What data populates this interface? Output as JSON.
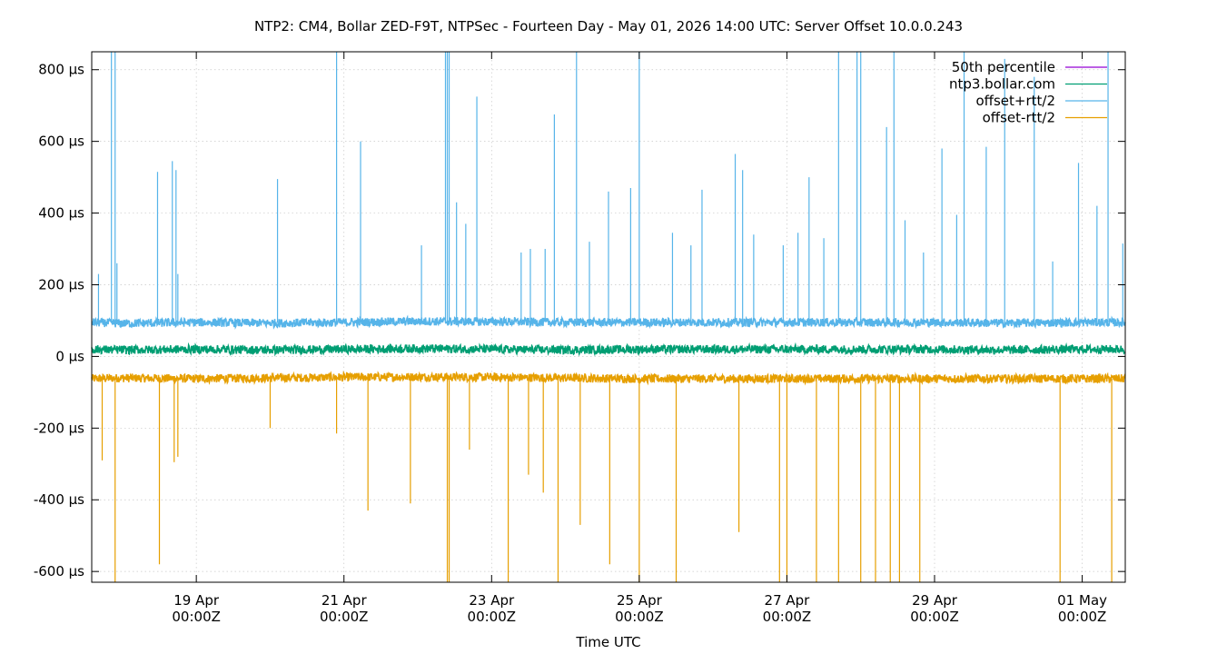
{
  "chart_data": {
    "type": "line",
    "title": "NTP2: CM4, Bollar ZED-F9T, NTPSec - Fourteen Day - May 01, 2026 14:00 UTC: Server Offset 10.0.0.243",
    "xlabel": "Time UTC",
    "ylabel": "",
    "y_unit": "µs",
    "xlim": [
      "2026-04-17T14:00Z",
      "2026-05-01T14:00Z"
    ],
    "ylim": [
      -630,
      850
    ],
    "grid": true,
    "legend_position": "top-right",
    "x_ticks": [
      {
        "at": "2026-04-19T00:00Z",
        "line1": "19 Apr",
        "line2": "00:00Z"
      },
      {
        "at": "2026-04-21T00:00Z",
        "line1": "21 Apr",
        "line2": "00:00Z"
      },
      {
        "at": "2026-04-23T00:00Z",
        "line1": "23 Apr",
        "line2": "00:00Z"
      },
      {
        "at": "2026-04-25T00:00Z",
        "line1": "25 Apr",
        "line2": "00:00Z"
      },
      {
        "at": "2026-04-27T00:00Z",
        "line1": "27 Apr",
        "line2": "00:00Z"
      },
      {
        "at": "2026-04-29T00:00Z",
        "line1": "29 Apr",
        "line2": "00:00Z"
      },
      {
        "at": "2026-05-01T00:00Z",
        "line1": "01 May",
        "line2": "00:00Z"
      }
    ],
    "y_ticks": [
      {
        "value": 800,
        "label": "800 µs"
      },
      {
        "value": 600,
        "label": "600 µs"
      },
      {
        "value": 400,
        "label": "400 µs"
      },
      {
        "value": 200,
        "label": "200 µs"
      },
      {
        "value": 0,
        "label": "0 µs"
      },
      {
        "value": -200,
        "label": "-200 µs"
      },
      {
        "value": -400,
        "label": "-400 µs"
      },
      {
        "value": -600,
        "label": "-600 µs"
      }
    ],
    "series": [
      {
        "name": "50th percentile",
        "color": "#9400d3",
        "x": [
          "2026-04-17T14:00Z",
          "2026-05-01T14:00Z"
        ],
        "values": [
          20,
          20
        ],
        "visible_in_plot": false
      },
      {
        "name": "ntp3.bollar.com",
        "color": "#009e73",
        "x": [
          "2026-04-17T14:00Z",
          "2026-04-18T00:00Z",
          "2026-04-19T00:00Z",
          "2026-04-20T00:00Z",
          "2026-04-21T00:00Z",
          "2026-04-22T00:00Z",
          "2026-04-23T00:00Z",
          "2026-04-24T00:00Z",
          "2026-04-25T00:00Z",
          "2026-04-26T00:00Z",
          "2026-04-27T00:00Z",
          "2026-04-28T00:00Z",
          "2026-04-29T00:00Z",
          "2026-04-30T00:00Z",
          "2026-05-01T00:00Z",
          "2026-05-01T14:00Z"
        ],
        "values": [
          20,
          18,
          20,
          18,
          20,
          22,
          20,
          18,
          20,
          20,
          20,
          20,
          20,
          18,
          20,
          20
        ],
        "noise": 12
      },
      {
        "name": "offset+rtt/2",
        "color": "#56b4e9",
        "x": [
          "2026-04-17T14:00Z",
          "2026-04-18T00:00Z",
          "2026-04-19T00:00Z",
          "2026-04-20T00:00Z",
          "2026-04-21T00:00Z",
          "2026-04-22T00:00Z",
          "2026-04-23T00:00Z",
          "2026-04-24T00:00Z",
          "2026-04-25T00:00Z",
          "2026-04-26T00:00Z",
          "2026-04-27T00:00Z",
          "2026-04-28T00:00Z",
          "2026-04-29T00:00Z",
          "2026-04-30T00:00Z",
          "2026-05-01T00:00Z",
          "2026-05-01T14:00Z"
        ],
        "values": [
          95,
          92,
          95,
          93,
          95,
          98,
          97,
          95,
          95,
          95,
          95,
          95,
          95,
          93,
          95,
          95
        ],
        "noise": 12,
        "spikes": [
          {
            "x": "2026-04-17T16:12Z",
            "value": 230
          },
          {
            "x": "2026-04-17T20:24Z",
            "value": 850
          },
          {
            "x": "2026-04-17T21:36Z",
            "value": 850
          },
          {
            "x": "2026-04-17T22:12Z",
            "value": 260
          },
          {
            "x": "2026-04-18T11:24Z",
            "value": 515
          },
          {
            "x": "2026-04-18T16:12Z",
            "value": 545
          },
          {
            "x": "2026-04-18T17:24Z",
            "value": 520
          },
          {
            "x": "2026-04-18T18:00Z",
            "value": 230
          },
          {
            "x": "2026-04-20T02:24Z",
            "value": 495
          },
          {
            "x": "2026-04-20T21:36Z",
            "value": 850
          },
          {
            "x": "2026-04-21T05:24Z",
            "value": 600
          },
          {
            "x": "2026-04-22T01:12Z",
            "value": 310
          },
          {
            "x": "2026-04-22T09:00Z",
            "value": 850
          },
          {
            "x": "2026-04-22T09:36Z",
            "value": 850
          },
          {
            "x": "2026-04-22T10:12Z",
            "value": 850
          },
          {
            "x": "2026-04-22T12:36Z",
            "value": 430
          },
          {
            "x": "2026-04-22T15:36Z",
            "value": 370
          },
          {
            "x": "2026-04-22T19:12Z",
            "value": 725
          },
          {
            "x": "2026-04-23T09:36Z",
            "value": 290
          },
          {
            "x": "2026-04-23T12:36Z",
            "value": 300
          },
          {
            "x": "2026-04-23T17:24Z",
            "value": 300
          },
          {
            "x": "2026-04-23T20:24Z",
            "value": 675
          },
          {
            "x": "2026-04-24T03:36Z",
            "value": 850
          },
          {
            "x": "2026-04-24T07:48Z",
            "value": 320
          },
          {
            "x": "2026-04-24T14:00Z",
            "value": 460
          },
          {
            "x": "2026-04-24T21:12Z",
            "value": 470
          },
          {
            "x": "2026-04-25T00:00Z",
            "value": 850
          },
          {
            "x": "2026-04-25T10:48Z",
            "value": 345
          },
          {
            "x": "2026-04-25T16:48Z",
            "value": 310
          },
          {
            "x": "2026-04-25T20:24Z",
            "value": 465
          },
          {
            "x": "2026-04-26T07:12Z",
            "value": 565
          },
          {
            "x": "2026-04-26T09:36Z",
            "value": 520
          },
          {
            "x": "2026-04-26T13:12Z",
            "value": 340
          },
          {
            "x": "2026-04-26T22:48Z",
            "value": 310
          },
          {
            "x": "2026-04-27T03:36Z",
            "value": 345
          },
          {
            "x": "2026-04-27T07:12Z",
            "value": 500
          },
          {
            "x": "2026-04-27T12:00Z",
            "value": 330
          },
          {
            "x": "2026-04-27T16:48Z",
            "value": 850
          },
          {
            "x": "2026-04-27T22:48Z",
            "value": 850
          },
          {
            "x": "2026-04-28T00:00Z",
            "value": 850
          },
          {
            "x": "2026-04-28T08:24Z",
            "value": 640
          },
          {
            "x": "2026-04-28T10:48Z",
            "value": 850
          },
          {
            "x": "2026-04-28T14:24Z",
            "value": 380
          },
          {
            "x": "2026-04-28T20:24Z",
            "value": 290
          },
          {
            "x": "2026-04-29T02:24Z",
            "value": 580
          },
          {
            "x": "2026-04-29T07:12Z",
            "value": 395
          },
          {
            "x": "2026-04-29T09:36Z",
            "value": 850
          },
          {
            "x": "2026-04-29T16:48Z",
            "value": 585
          },
          {
            "x": "2026-04-29T22:48Z",
            "value": 830
          },
          {
            "x": "2026-04-30T08:24Z",
            "value": 780
          },
          {
            "x": "2026-04-30T14:24Z",
            "value": 265
          },
          {
            "x": "2026-04-30T22:48Z",
            "value": 540
          },
          {
            "x": "2026-05-01T04:48Z",
            "value": 420
          },
          {
            "x": "2026-05-01T08:24Z",
            "value": 850
          },
          {
            "x": "2026-05-01T13:12Z",
            "value": 315
          }
        ]
      },
      {
        "name": "offset-rtt/2",
        "color": "#e69f00",
        "x": [
          "2026-04-17T14:00Z",
          "2026-04-18T00:00Z",
          "2026-04-19T00:00Z",
          "2026-04-20T00:00Z",
          "2026-04-21T00:00Z",
          "2026-04-22T00:00Z",
          "2026-04-23T00:00Z",
          "2026-04-24T00:00Z",
          "2026-04-25T00:00Z",
          "2026-04-26T00:00Z",
          "2026-04-27T00:00Z",
          "2026-04-28T00:00Z",
          "2026-04-29T00:00Z",
          "2026-04-30T00:00Z",
          "2026-05-01T00:00Z",
          "2026-05-01T14:00Z"
        ],
        "values": [
          -62,
          -60,
          -62,
          -60,
          -58,
          -57,
          -58,
          -60,
          -62,
          -62,
          -62,
          -62,
          -62,
          -62,
          -62,
          -62
        ],
        "noise": 12,
        "spikes": [
          {
            "x": "2026-04-17T17:24Z",
            "value": -290
          },
          {
            "x": "2026-04-17T21:36Z",
            "value": -630
          },
          {
            "x": "2026-04-18T12:00Z",
            "value": -580
          },
          {
            "x": "2026-04-18T16:48Z",
            "value": -295
          },
          {
            "x": "2026-04-18T18:00Z",
            "value": -280
          },
          {
            "x": "2026-04-20T00:00Z",
            "value": -200
          },
          {
            "x": "2026-04-20T21:36Z",
            "value": -215
          },
          {
            "x": "2026-04-21T07:48Z",
            "value": -430
          },
          {
            "x": "2026-04-21T21:36Z",
            "value": -410
          },
          {
            "x": "2026-04-22T09:36Z",
            "value": -630
          },
          {
            "x": "2026-04-22T10:12Z",
            "value": -630
          },
          {
            "x": "2026-04-22T16:48Z",
            "value": -260
          },
          {
            "x": "2026-04-23T05:24Z",
            "value": -630
          },
          {
            "x": "2026-04-23T12:00Z",
            "value": -330
          },
          {
            "x": "2026-04-23T16:48Z",
            "value": -380
          },
          {
            "x": "2026-04-23T21:36Z",
            "value": -630
          },
          {
            "x": "2026-04-24T04:48Z",
            "value": -470
          },
          {
            "x": "2026-04-24T14:24Z",
            "value": -580
          },
          {
            "x": "2026-04-25T00:00Z",
            "value": -630
          },
          {
            "x": "2026-04-25T12:00Z",
            "value": -630
          },
          {
            "x": "2026-04-26T08:24Z",
            "value": -490
          },
          {
            "x": "2026-04-26T21:36Z",
            "value": -630
          },
          {
            "x": "2026-04-27T00:00Z",
            "value": -630
          },
          {
            "x": "2026-04-27T09:36Z",
            "value": -630
          },
          {
            "x": "2026-04-27T16:48Z",
            "value": -630
          },
          {
            "x": "2026-04-28T00:00Z",
            "value": -630
          },
          {
            "x": "2026-04-28T04:48Z",
            "value": -630
          },
          {
            "x": "2026-04-28T09:36Z",
            "value": -630
          },
          {
            "x": "2026-04-28T12:36Z",
            "value": -630
          },
          {
            "x": "2026-04-28T19:12Z",
            "value": -630
          },
          {
            "x": "2026-04-30T16:48Z",
            "value": -630
          },
          {
            "x": "2026-05-01T09:36Z",
            "value": -630
          }
        ]
      }
    ]
  }
}
